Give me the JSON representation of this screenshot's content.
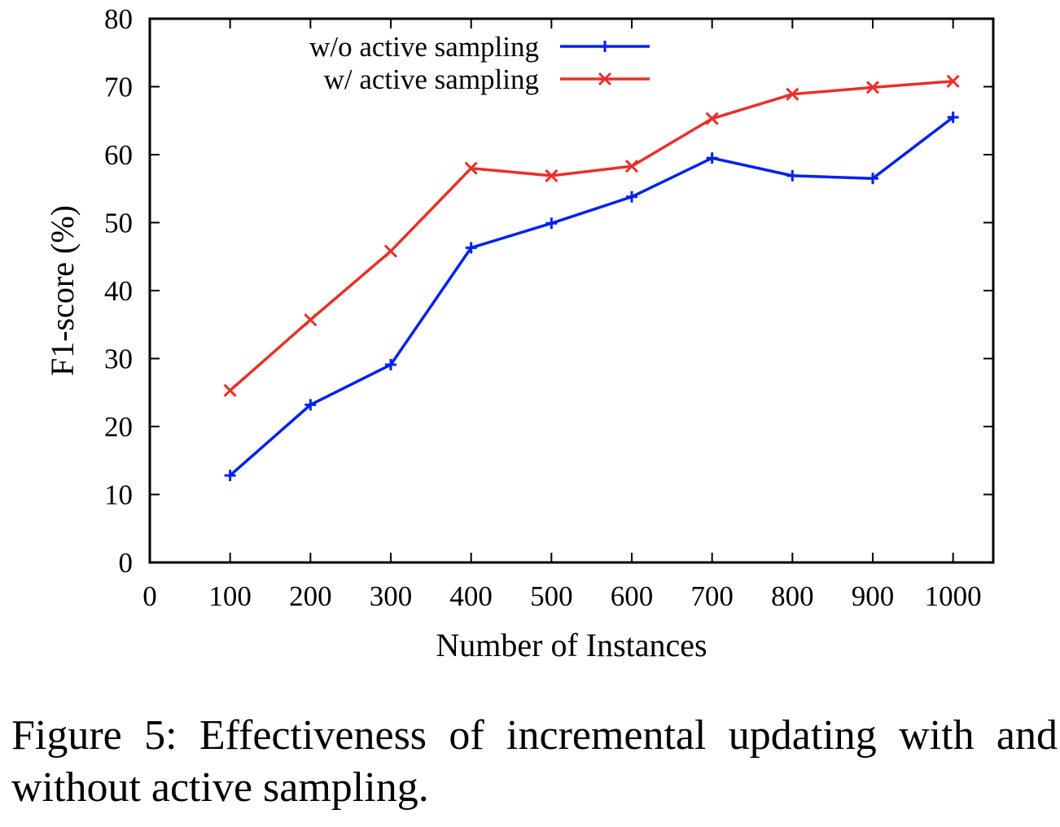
{
  "chart_data": {
    "type": "line",
    "xlabel": "Number of Instances",
    "ylabel": "F1-score (%)",
    "xlim": [
      0,
      1050
    ],
    "ylim": [
      0,
      80
    ],
    "x_ticks": [
      0,
      100,
      200,
      300,
      400,
      500,
      600,
      700,
      800,
      900,
      1000
    ],
    "y_ticks": [
      0,
      10,
      20,
      30,
      40,
      50,
      60,
      70,
      80
    ],
    "grid": false,
    "legend_position": "top-right",
    "x": [
      100,
      200,
      300,
      400,
      500,
      600,
      700,
      800,
      900,
      1000
    ],
    "series": [
      {
        "name": "w/o active sampling",
        "color": "#0022ee",
        "marker": "plus",
        "values": [
          12.8,
          23.2,
          29.1,
          46.3,
          49.9,
          53.8,
          59.5,
          56.9,
          56.5,
          65.5
        ]
      },
      {
        "name": "w/ active sampling",
        "color": "#e8302a",
        "marker": "cross",
        "values": [
          25.3,
          35.7,
          45.8,
          58.0,
          56.9,
          58.3,
          65.3,
          68.9,
          69.9,
          70.8
        ]
      }
    ]
  },
  "caption": "Figure 5: Effectiveness of incremental updating with and without active sampling."
}
